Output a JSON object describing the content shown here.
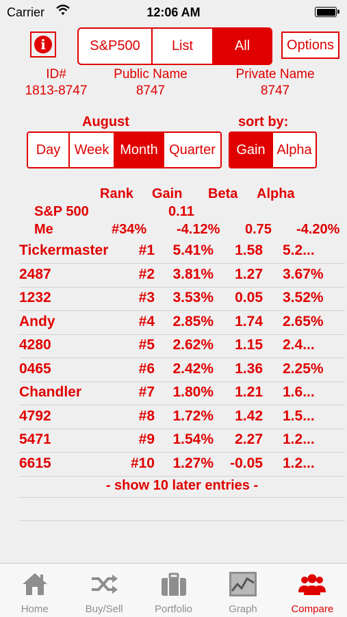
{
  "status_bar": {
    "carrier": "Carrier",
    "time": "12:06 AM"
  },
  "top_segment": {
    "options": [
      "S&P500",
      "List",
      "All"
    ],
    "selected": "All"
  },
  "options_button": "Options",
  "ids": [
    {
      "label": "ID#",
      "value": "1813-8747"
    },
    {
      "label": "Public Name",
      "value": "8747"
    },
    {
      "label": "Private Name",
      "value": "8747"
    }
  ],
  "period": {
    "label": "August",
    "options": [
      "Day",
      "Week",
      "Month",
      "Quarter"
    ],
    "selected": "Month"
  },
  "sort": {
    "label": "sort by:",
    "options": [
      "Gain",
      "Alpha"
    ],
    "selected": "Gain"
  },
  "table_headers": {
    "rank": "Rank",
    "gain": "Gain",
    "beta": "Beta",
    "alpha": "Alpha"
  },
  "sp500_row": {
    "name": "S&P 500",
    "gain": "0.11"
  },
  "me_row": {
    "name": "Me",
    "rank": "#34%",
    "gain": "-4.12%",
    "beta": "0.75",
    "alpha": "-4.20%"
  },
  "rows": [
    {
      "name": "Tickermaster",
      "rank": "#1",
      "gain": "5.41%",
      "beta": "1.58",
      "alpha": "5.2..."
    },
    {
      "name": "2487",
      "rank": "#2",
      "gain": "3.81%",
      "beta": "1.27",
      "alpha": "3.67%"
    },
    {
      "name": "1232",
      "rank": "#3",
      "gain": "3.53%",
      "beta": "0.05",
      "alpha": "3.52%"
    },
    {
      "name": "Andy",
      "rank": "#4",
      "gain": "2.85%",
      "beta": "1.74",
      "alpha": "2.65%"
    },
    {
      "name": "4280",
      "rank": "#5",
      "gain": "2.62%",
      "beta": "1.15",
      "alpha": "2.4..."
    },
    {
      "name": "0465",
      "rank": "#6",
      "gain": "2.42%",
      "beta": "1.36",
      "alpha": "2.25%"
    },
    {
      "name": "Chandler",
      "rank": "#7",
      "gain": "1.80%",
      "beta": "1.21",
      "alpha": "1.6..."
    },
    {
      "name": "4792",
      "rank": "#8",
      "gain": "1.72%",
      "beta": "1.42",
      "alpha": "1.5..."
    },
    {
      "name": "5471",
      "rank": "#9",
      "gain": "1.54%",
      "beta": "2.27",
      "alpha": "1.2..."
    },
    {
      "name": "6615",
      "rank": "#10",
      "gain": "1.27%",
      "beta": "-0.05",
      "alpha": "1.2..."
    }
  ],
  "show_more": "- show 10 later entries -",
  "tabs": [
    {
      "label": "Home",
      "icon": "home-icon"
    },
    {
      "label": "Buy/Sell",
      "icon": "shuffle-icon"
    },
    {
      "label": "Portfolio",
      "icon": "briefcase-icon"
    },
    {
      "label": "Graph",
      "icon": "graph-icon"
    },
    {
      "label": "Compare",
      "icon": "people-icon"
    }
  ],
  "active_tab": "Compare",
  "colors": {
    "accent": "#e00000",
    "tab_inactive": "#8e8e8e"
  }
}
